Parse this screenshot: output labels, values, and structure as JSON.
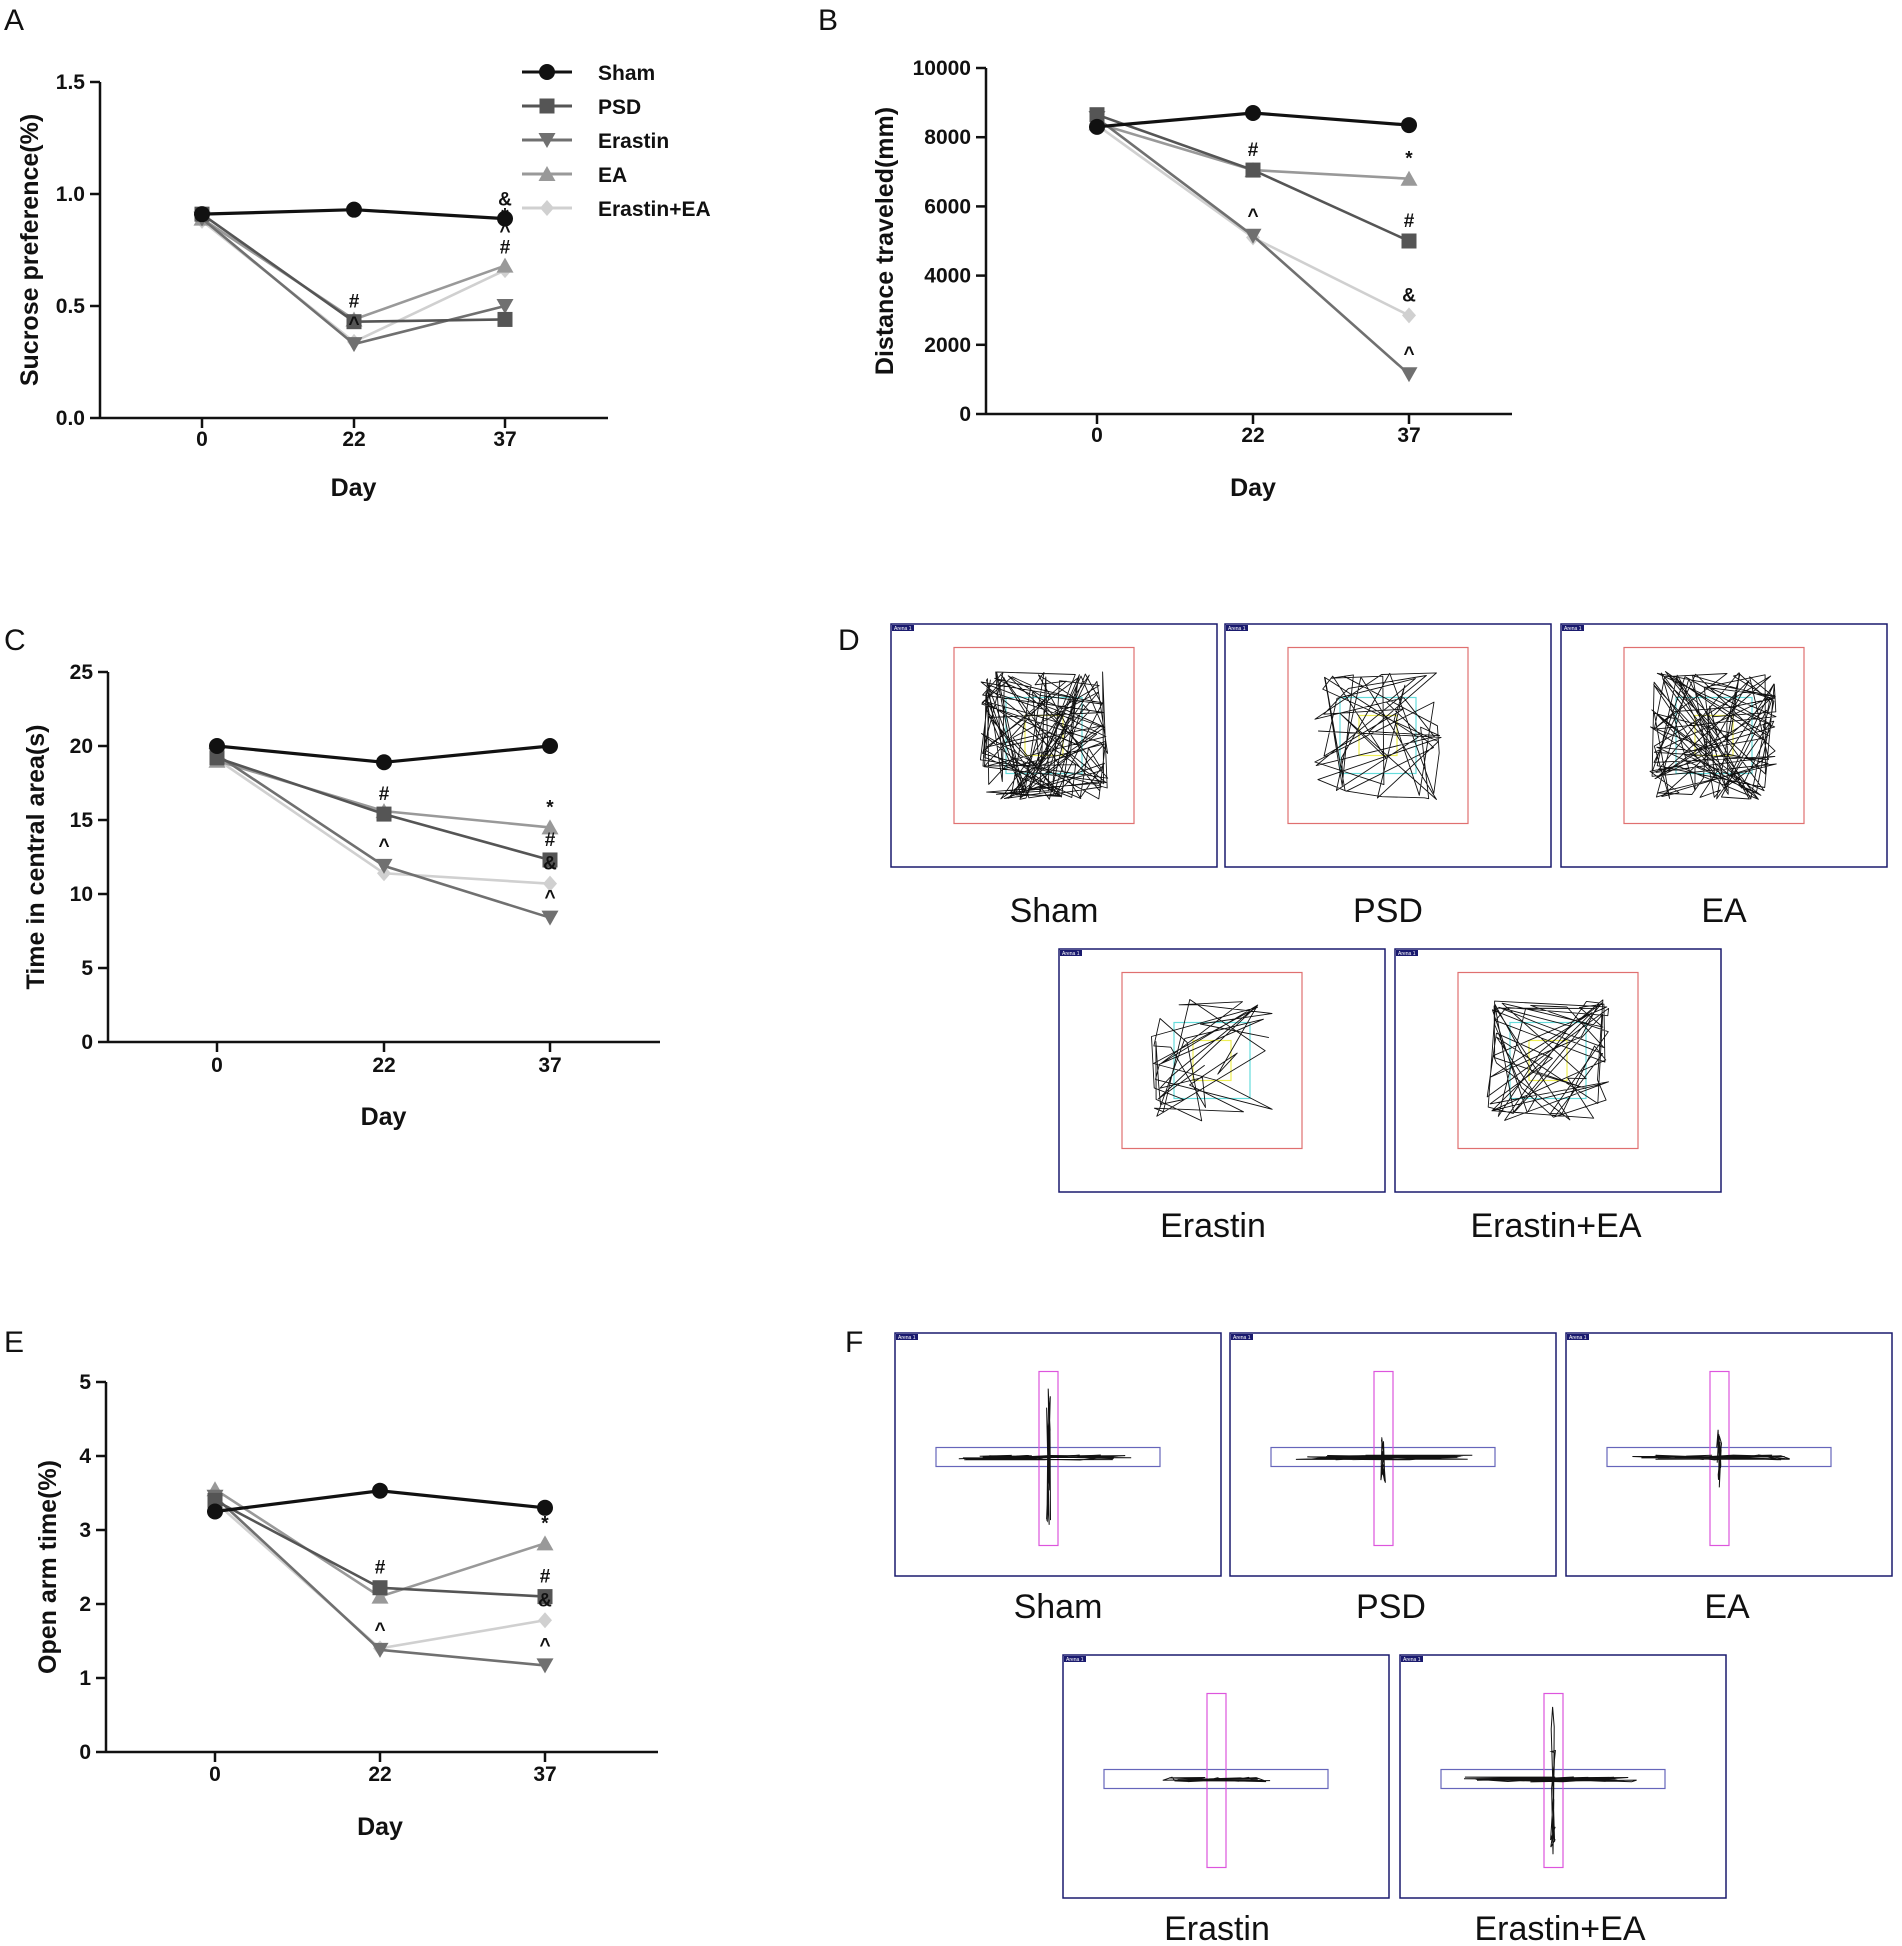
{
  "colors": {
    "Sham": "#111111",
    "PSD": "#555555",
    "Erastin": "#707070",
    "EA": "#999999",
    "Erastin+EA": "#d0d0d0",
    "arena_border": "#1a1a6e",
    "zone_outer": "#e07070",
    "zone_mid": "#66dddd",
    "zone_inner": "#eeee55",
    "epm_open": "#6666bb",
    "epm_closed": "#dd55dd"
  },
  "legend": {
    "items": [
      {
        "name": "Sham",
        "marker": "circle"
      },
      {
        "name": "PSD",
        "marker": "square"
      },
      {
        "name": "Erastin",
        "marker": "triangle-down"
      },
      {
        "name": "EA",
        "marker": "triangle-up"
      },
      {
        "name": "Erastin+EA",
        "marker": "diamond"
      }
    ]
  },
  "chart_data": [
    {
      "panel": "A",
      "type": "line",
      "title": "",
      "xlabel": "Day",
      "ylabel": "Sucrose preference(%)",
      "categories": [
        "0",
        "22",
        "37"
      ],
      "ylim": [
        0,
        1.5
      ],
      "yticks": [
        0.0,
        0.5,
        1.0,
        1.5
      ],
      "ytick_labels": [
        "0.0",
        "0.5",
        "1.0",
        "1.5"
      ],
      "series": [
        {
          "name": "Sham",
          "values": [
            0.91,
            0.93,
            0.89
          ]
        },
        {
          "name": "PSD",
          "values": [
            0.91,
            0.43,
            0.44
          ]
        },
        {
          "name": "Erastin",
          "values": [
            0.89,
            0.33,
            0.5
          ]
        },
        {
          "name": "EA",
          "values": [
            0.89,
            0.44,
            0.68
          ]
        },
        {
          "name": "Erastin+EA",
          "values": [
            0.88,
            0.34,
            0.66
          ]
        }
      ],
      "annotations": [
        {
          "text": "#",
          "series": "PSD",
          "index": 1
        },
        {
          "text": "^",
          "series": "Erastin",
          "index": 1
        },
        {
          "text": "&",
          "series": "EA",
          "index": 2,
          "stack": 3
        },
        {
          "text": "*",
          "series": "EA",
          "index": 2,
          "stack": 2
        },
        {
          "text": "^",
          "series": "EA",
          "index": 2,
          "stack": 1
        },
        {
          "text": "#",
          "series": "EA",
          "index": 2,
          "stack": 0
        }
      ]
    },
    {
      "panel": "B",
      "type": "line",
      "title": "",
      "xlabel": "Day",
      "ylabel": "Distance traveled(mm)",
      "categories": [
        "0",
        "22",
        "37"
      ],
      "ylim": [
        0,
        10000
      ],
      "yticks": [
        0,
        2000,
        4000,
        6000,
        8000,
        10000
      ],
      "ytick_labels": [
        "0",
        "2000",
        "4000",
        "6000",
        "8000",
        "10000"
      ],
      "series": [
        {
          "name": "Sham",
          "values": [
            8300,
            8700,
            8350
          ]
        },
        {
          "name": "PSD",
          "values": [
            8650,
            7050,
            5000
          ]
        },
        {
          "name": "Erastin",
          "values": [
            8550,
            5150,
            1150
          ]
        },
        {
          "name": "EA",
          "values": [
            8400,
            7050,
            6800
          ]
        },
        {
          "name": "Erastin+EA",
          "values": [
            8350,
            5100,
            2850
          ]
        }
      ],
      "annotations": [
        {
          "text": "#",
          "series": "PSD",
          "index": 1
        },
        {
          "text": "^",
          "series": "Erastin",
          "index": 1
        },
        {
          "text": "*",
          "series": "EA",
          "index": 2
        },
        {
          "text": "#",
          "series": "PSD",
          "index": 2
        },
        {
          "text": "&",
          "series": "Erastin+EA",
          "index": 2
        },
        {
          "text": "^",
          "series": "Erastin",
          "index": 2
        }
      ]
    },
    {
      "panel": "C",
      "type": "line",
      "title": "",
      "xlabel": "Day",
      "ylabel": "Time in central area(s)",
      "categories": [
        "0",
        "22",
        "37"
      ],
      "ylim": [
        0,
        25
      ],
      "yticks": [
        0,
        5,
        10,
        15,
        20,
        25
      ],
      "ytick_labels": [
        "0",
        "5",
        "10",
        "15",
        "20",
        "25"
      ],
      "series": [
        {
          "name": "Sham",
          "values": [
            20.0,
            18.9,
            20.0
          ]
        },
        {
          "name": "PSD",
          "values": [
            19.2,
            15.4,
            12.3
          ]
        },
        {
          "name": "Erastin",
          "values": [
            19.4,
            11.9,
            8.4
          ]
        },
        {
          "name": "EA",
          "values": [
            19.0,
            15.6,
            14.5
          ]
        },
        {
          "name": "Erastin+EA",
          "values": [
            19.1,
            11.4,
            10.7
          ]
        }
      ],
      "annotations": [
        {
          "text": "#",
          "series": "PSD",
          "index": 1
        },
        {
          "text": "^",
          "series": "Erastin",
          "index": 1
        },
        {
          "text": "*",
          "series": "EA",
          "index": 2
        },
        {
          "text": "#",
          "series": "PSD",
          "index": 2
        },
        {
          "text": "&",
          "series": "Erastin+EA",
          "index": 2
        },
        {
          "text": "^",
          "series": "Erastin",
          "index": 2
        }
      ]
    },
    {
      "panel": "E",
      "type": "line",
      "title": "",
      "xlabel": "Day",
      "ylabel": "Open arm time(%)",
      "categories": [
        "0",
        "22",
        "37"
      ],
      "ylim": [
        0,
        5
      ],
      "yticks": [
        0,
        1,
        2,
        3,
        4,
        5
      ],
      "ytick_labels": [
        "0",
        "1",
        "2",
        "3",
        "4",
        "5"
      ],
      "series": [
        {
          "name": "Sham",
          "values": [
            3.25,
            3.53,
            3.3
          ]
        },
        {
          "name": "PSD",
          "values": [
            3.4,
            2.22,
            2.1
          ]
        },
        {
          "name": "Erastin",
          "values": [
            3.45,
            1.38,
            1.17
          ]
        },
        {
          "name": "EA",
          "values": [
            3.55,
            2.1,
            2.82
          ]
        },
        {
          "name": "Erastin+EA",
          "values": [
            3.38,
            1.4,
            1.78
          ]
        }
      ],
      "annotations": [
        {
          "text": "#",
          "series": "PSD",
          "index": 1
        },
        {
          "text": "^",
          "series": "Erastin",
          "index": 1
        },
        {
          "text": "*",
          "series": "EA",
          "index": 2
        },
        {
          "text": "#",
          "series": "PSD",
          "index": 2
        },
        {
          "text": "&",
          "series": "Erastin+EA",
          "index": 2
        },
        {
          "text": "^",
          "series": "Erastin",
          "index": 2
        }
      ]
    }
  ],
  "panels": {
    "A": "A",
    "B": "B",
    "C": "C",
    "D": "D",
    "E": "E",
    "F": "F"
  },
  "open_field": {
    "tag": "Arena 1",
    "groups": [
      "Sham",
      "PSD",
      "EA",
      "Erastin",
      "Erastin+EA"
    ]
  },
  "elevated_plus_maze": {
    "tag": "Arena 1",
    "groups": [
      "Sham",
      "PSD",
      "EA",
      "Erastin",
      "Erastin+EA"
    ]
  }
}
